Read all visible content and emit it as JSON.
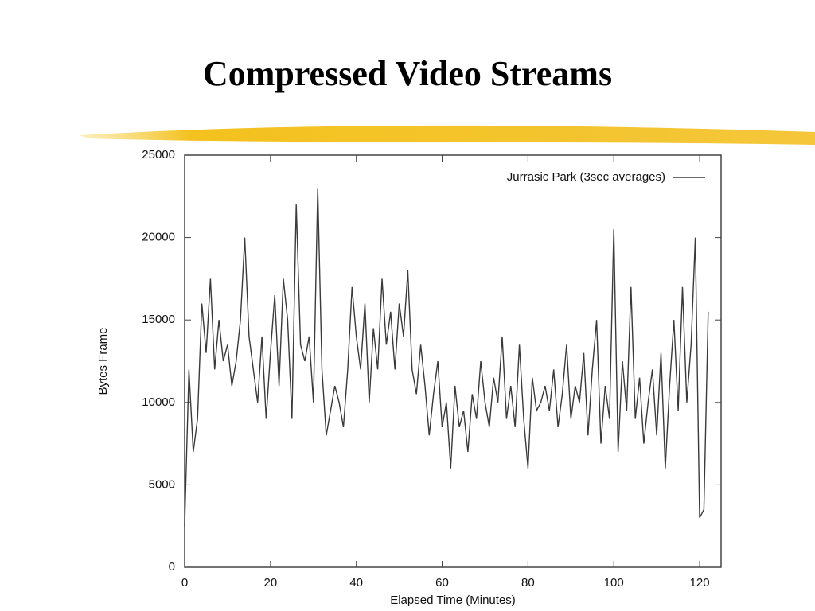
{
  "slide": {
    "title": "Compressed Video Streams"
  },
  "chart_data": {
    "type": "line",
    "x_label": "Elapsed Time (Minutes)",
    "y_label": "Bytes Frame",
    "x": [
      0,
      1,
      2,
      3,
      4,
      5,
      6,
      7,
      8,
      9,
      10,
      11,
      12,
      13,
      14,
      15,
      16,
      17,
      18,
      19,
      20,
      21,
      22,
      23,
      24,
      25,
      26,
      27,
      28,
      29,
      30,
      31,
      32,
      33,
      34,
      35,
      36,
      37,
      38,
      39,
      40,
      41,
      42,
      43,
      44,
      45,
      46,
      47,
      48,
      49,
      50,
      51,
      52,
      53,
      54,
      55,
      56,
      57,
      58,
      59,
      60,
      61,
      62,
      63,
      64,
      65,
      66,
      67,
      68,
      69,
      70,
      71,
      72,
      73,
      74,
      75,
      76,
      77,
      78,
      79,
      80,
      81,
      82,
      83,
      84,
      85,
      86,
      87,
      88,
      89,
      90,
      91,
      92,
      93,
      94,
      95,
      96,
      97,
      98,
      99,
      100,
      101,
      102,
      103,
      104,
      105,
      106,
      107,
      108,
      109,
      110,
      111,
      112,
      113,
      114,
      115,
      116,
      117,
      118,
      119,
      120,
      121,
      122
    ],
    "series": [
      {
        "name": "Jurrasic Park (3sec averages)",
        "color": "#3a3a3a",
        "values": [
          2500,
          12000,
          7000,
          9000,
          16000,
          13000,
          17500,
          12000,
          15000,
          12500,
          13500,
          11000,
          12500,
          15000,
          20000,
          14000,
          12000,
          10000,
          14000,
          9000,
          13000,
          16500,
          11000,
          17500,
          15000,
          9000,
          22000,
          13500,
          12500,
          14000,
          10000,
          23000,
          12000,
          8000,
          9500,
          11000,
          10000,
          8500,
          12000,
          17000,
          14000,
          12000,
          16000,
          10000,
          14500,
          12000,
          17500,
          13500,
          15500,
          12000,
          16000,
          14000,
          18000,
          12000,
          10500,
          13500,
          11000,
          8000,
          10500,
          12500,
          8500,
          10000,
          6000,
          11000,
          8500,
          9500,
          7000,
          10500,
          9000,
          12500,
          10000,
          8500,
          11500,
          10000,
          14000,
          9000,
          11000,
          8500,
          13500,
          9000,
          6000,
          11500,
          9500,
          10000,
          11000,
          9500,
          12000,
          8500,
          10500,
          13500,
          9000,
          11000,
          10000,
          13000,
          8000,
          12000,
          15000,
          7500,
          11000,
          9000,
          20500,
          7000,
          12500,
          9500,
          17000,
          9000,
          11500,
          7500,
          10000,
          12000,
          8000,
          13000,
          6000,
          11000,
          15000,
          9500,
          17000,
          10000,
          13500,
          20000,
          3000,
          3500,
          15500
        ]
      }
    ],
    "xlim": [
      0,
      125
    ],
    "ylim": [
      0,
      25000
    ],
    "xticks": [
      0,
      20,
      40,
      60,
      80,
      100,
      120
    ],
    "yticks": [
      0,
      5000,
      10000,
      15000,
      20000,
      25000
    ],
    "legend": "upper right"
  }
}
